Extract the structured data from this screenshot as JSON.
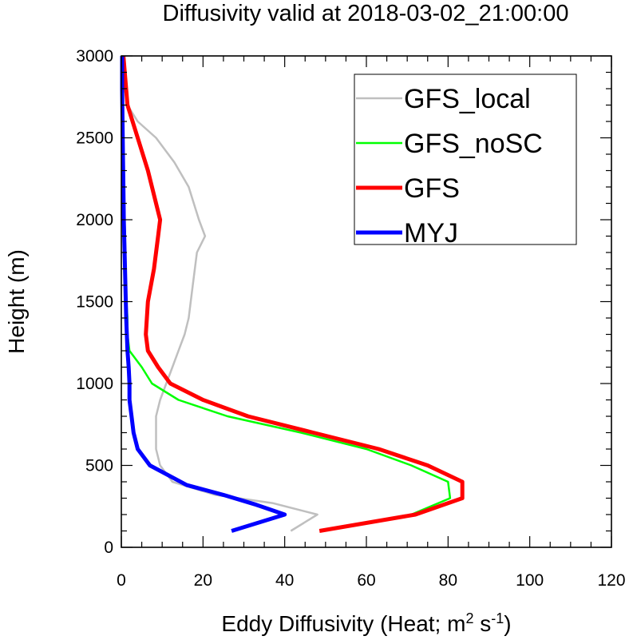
{
  "chart_data": {
    "type": "line",
    "title": "Diffusivity valid at 2018-03-02_21:00:00",
    "xlabel": {
      "prefix": "Eddy Diffusivity (Heat; m",
      "sup1": "2",
      "middle": " s",
      "sup2": "-1",
      "suffix": ")"
    },
    "ylabel": "Height (m)",
    "xlim": [
      0,
      120
    ],
    "ylim": [
      0,
      3000
    ],
    "xticks": [
      0,
      20,
      40,
      60,
      80,
      100,
      120
    ],
    "yticks": [
      0,
      500,
      1000,
      1500,
      2000,
      2500,
      3000
    ],
    "grid": false,
    "legend_position": "top-right",
    "series": [
      {
        "name": "GFS_local",
        "color": "#bfbfbf",
        "points": [
          [
            41.5,
            100
          ],
          [
            48,
            200
          ],
          [
            37,
            270
          ],
          [
            23,
            320
          ],
          [
            12.5,
            400
          ],
          [
            9.5,
            500
          ],
          [
            8.5,
            600
          ],
          [
            8.5,
            700
          ],
          [
            8.5,
            800
          ],
          [
            9.5,
            900
          ],
          [
            11,
            1000
          ],
          [
            12.5,
            1100
          ],
          [
            14,
            1200
          ],
          [
            15.5,
            1300
          ],
          [
            16.5,
            1400
          ],
          [
            17.5,
            1600
          ],
          [
            18.5,
            1800
          ],
          [
            20.5,
            1900
          ],
          [
            19,
            2000
          ],
          [
            16.5,
            2200
          ],
          [
            13,
            2350
          ],
          [
            8.5,
            2500
          ],
          [
            4,
            2600
          ],
          [
            1.5,
            2700
          ],
          [
            0.8,
            2800
          ],
          [
            0.5,
            3000
          ]
        ]
      },
      {
        "name": "GFS_noSC",
        "color": "#00ff00",
        "points": [
          [
            49,
            100
          ],
          [
            71,
            200
          ],
          [
            80.5,
            300
          ],
          [
            80,
            400
          ],
          [
            71,
            500
          ],
          [
            60,
            600
          ],
          [
            44,
            700
          ],
          [
            26,
            800
          ],
          [
            14,
            900
          ],
          [
            7.5,
            1000
          ],
          [
            5,
            1100
          ],
          [
            2,
            1200
          ],
          [
            1.5,
            1300
          ],
          [
            1.5,
            1400
          ],
          [
            1,
            1600
          ],
          [
            1,
            1800
          ],
          [
            0.8,
            2000
          ],
          [
            0.6,
            2200
          ],
          [
            0.5,
            2400
          ],
          [
            0.4,
            2600
          ],
          [
            0.3,
            2800
          ],
          [
            0.3,
            3000
          ]
        ]
      },
      {
        "name": "GFS",
        "color": "#ff0000",
        "points": [
          [
            48.5,
            100
          ],
          [
            72,
            200
          ],
          [
            83.5,
            300
          ],
          [
            83.5,
            400
          ],
          [
            75,
            500
          ],
          [
            63,
            600
          ],
          [
            47,
            700
          ],
          [
            31,
            800
          ],
          [
            20,
            900
          ],
          [
            12,
            1000
          ],
          [
            9,
            1100
          ],
          [
            6.5,
            1200
          ],
          [
            6,
            1300
          ],
          [
            6.5,
            1500
          ],
          [
            8,
            1700
          ],
          [
            9,
            1900
          ],
          [
            9.5,
            2000
          ],
          [
            8.5,
            2100
          ],
          [
            6.5,
            2300
          ],
          [
            4,
            2500
          ],
          [
            1.5,
            2700
          ],
          [
            0.5,
            3000
          ]
        ]
      },
      {
        "name": "MYJ",
        "color": "#0000ff",
        "points": [
          [
            27,
            100
          ],
          [
            40,
            200
          ],
          [
            33,
            260
          ],
          [
            25,
            320
          ],
          [
            16,
            380
          ],
          [
            7,
            500
          ],
          [
            4,
            600
          ],
          [
            3,
            700
          ],
          [
            2.5,
            800
          ],
          [
            2,
            900
          ],
          [
            2,
            1000
          ],
          [
            1.8,
            1100
          ],
          [
            1.5,
            1200
          ],
          [
            1.2,
            1400
          ],
          [
            1,
            1600
          ],
          [
            0.8,
            1800
          ],
          [
            0.6,
            2000
          ],
          [
            0.5,
            2200
          ],
          [
            0.4,
            2400
          ],
          [
            0.3,
            2600
          ],
          [
            0.2,
            2800
          ],
          [
            0.2,
            3000
          ]
        ]
      }
    ]
  }
}
